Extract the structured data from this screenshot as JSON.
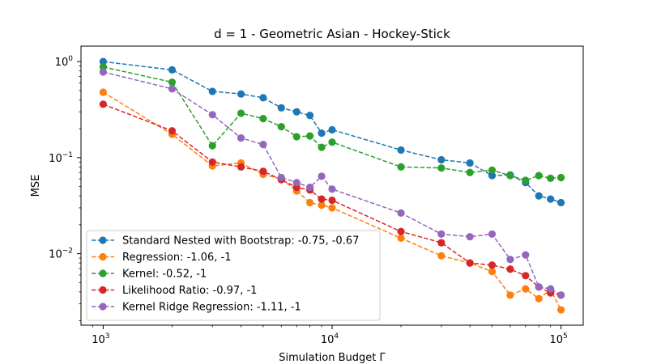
{
  "chart_data": {
    "type": "line",
    "title": "d = 1 - Geometric Asian - Hockey-Stick",
    "xlabel": "Simulation Budget Γ",
    "ylabel": "MSE",
    "xscale": "log",
    "yscale": "log",
    "xlim": [
      800,
      125000
    ],
    "ylim": [
      0.0018,
      1.45
    ],
    "x_ticks": [
      {
        "value": 1000,
        "base": "10",
        "exp": "3"
      },
      {
        "value": 10000,
        "base": "10",
        "exp": "4"
      },
      {
        "value": 100000,
        "base": "10",
        "exp": "5"
      }
    ],
    "y_ticks": [
      {
        "value": 1,
        "base": "10",
        "exp": "0"
      },
      {
        "value": 0.1,
        "base": "10",
        "exp": "−1"
      },
      {
        "value": 0.01,
        "base": "10",
        "exp": "−2"
      }
    ],
    "grid": false,
    "legend_position": "lower-left",
    "x": [
      1000,
      2000,
      3000,
      4000,
      5000,
      6000,
      7000,
      8000,
      9000,
      10000,
      20000,
      30000,
      40000,
      50000,
      60000,
      70000,
      80000,
      90000,
      100000
    ],
    "series": [
      {
        "name": "Standard Nested with Bootstrap: -0.75, -0.67",
        "color": "#1f77b4",
        "values": [
          1.0,
          0.82,
          0.49,
          0.46,
          0.42,
          0.33,
          0.3,
          0.275,
          0.18,
          0.195,
          0.12,
          0.095,
          0.088,
          0.065,
          0.066,
          0.055,
          0.04,
          0.037,
          0.034
        ]
      },
      {
        "name": "Regression: -1.06, -1",
        "color": "#ff7f0e",
        "values": [
          0.48,
          0.175,
          0.082,
          0.088,
          0.067,
          0.06,
          0.045,
          0.034,
          0.032,
          0.03,
          0.0145,
          0.0095,
          0.008,
          0.0065,
          0.0037,
          0.0043,
          0.0034,
          0.0042,
          0.0026
        ]
      },
      {
        "name": "Kernel: -0.52, -1",
        "color": "#2ca02c",
        "values": [
          0.88,
          0.61,
          0.133,
          0.29,
          0.255,
          0.21,
          0.165,
          0.168,
          0.128,
          0.145,
          0.08,
          0.078,
          0.07,
          0.074,
          0.065,
          0.058,
          0.065,
          0.061,
          0.062
        ]
      },
      {
        "name": "Likelihood Ratio: -0.97, -1",
        "color": "#d62728",
        "values": [
          0.36,
          0.19,
          0.09,
          0.08,
          0.072,
          0.059,
          0.049,
          0.046,
          0.037,
          0.036,
          0.017,
          0.013,
          0.008,
          0.0076,
          0.0069,
          0.0059,
          0.0045,
          0.0039,
          0.0037
        ]
      },
      {
        "name": "Kernel Ridge Regression: -1.11, -1",
        "color": "#9467bd",
        "values": [
          0.78,
          0.52,
          0.28,
          0.16,
          0.137,
          0.062,
          0.055,
          0.049,
          0.064,
          0.047,
          0.0265,
          0.016,
          0.015,
          0.016,
          0.0087,
          0.0097,
          0.0045,
          0.0043,
          0.0037
        ]
      }
    ]
  }
}
